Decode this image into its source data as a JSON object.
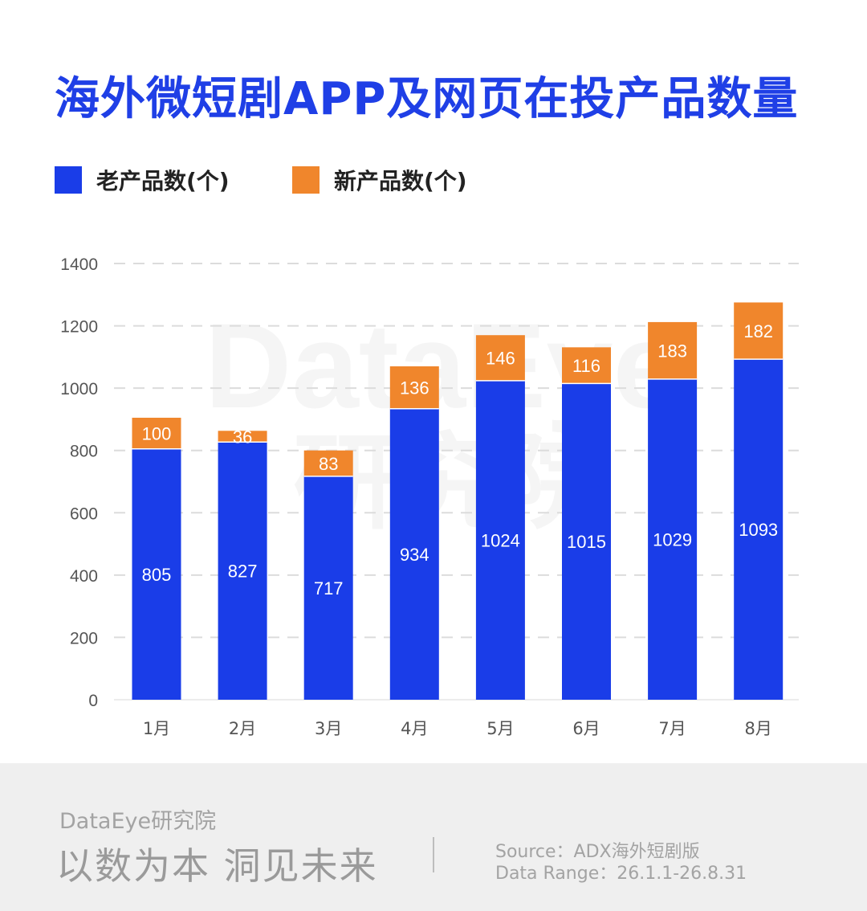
{
  "title": "海外微短剧APP及网页在投产品数量",
  "legend": [
    {
      "label": "老产品数(个)",
      "color": "#1a3de8"
    },
    {
      "label": "新产品数(个)",
      "color": "#f0862c"
    }
  ],
  "watermark": {
    "line1": "DataEye",
    "line2": "研究院"
  },
  "chart_data": {
    "type": "bar",
    "stacked": true,
    "categories": [
      "1月",
      "2月",
      "3月",
      "4月",
      "5月",
      "6月",
      "7月",
      "8月"
    ],
    "series": [
      {
        "name": "老产品数(个)",
        "color": "#1a3de8",
        "values": [
          805,
          827,
          717,
          934,
          1024,
          1015,
          1029,
          1093
        ]
      },
      {
        "name": "新产品数(个)",
        "color": "#f0862c",
        "values": [
          100,
          36,
          83,
          136,
          146,
          116,
          183,
          182
        ]
      }
    ],
    "ylim": [
      0,
      1400
    ],
    "yticks": [
      0,
      200,
      400,
      600,
      800,
      1000,
      1200,
      1400
    ],
    "grid": true,
    "legend_position": "top-left"
  },
  "footer": {
    "brand": "DataEye研究院",
    "slogan": "以数为本 洞见未来",
    "source": "Source：ADX海外短剧版",
    "range": "Data Range：26.1.1-26.8.31"
  }
}
